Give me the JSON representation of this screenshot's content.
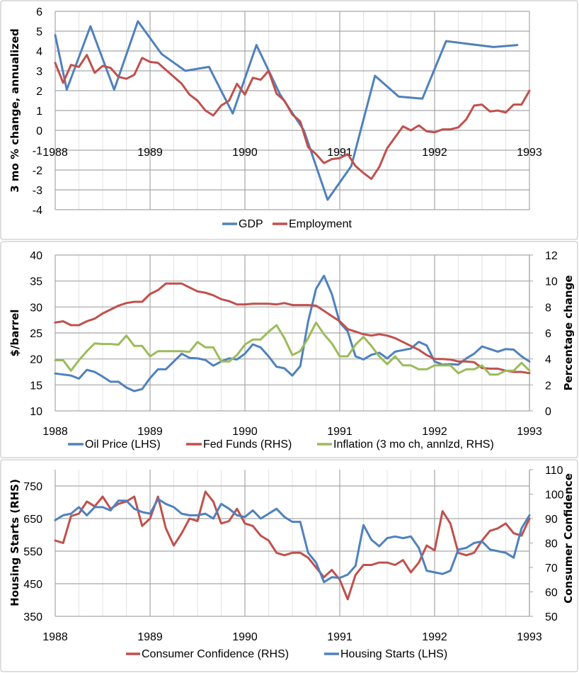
{
  "chart_data": [
    {
      "type": "line",
      "ylabel": "3 mo % change, annualized",
      "ylim": [
        -4,
        6
      ],
      "y_ticks": [
        "6",
        "5",
        "4",
        "3",
        "2",
        "1",
        "0",
        "-1",
        "-2",
        "-3",
        "-4"
      ],
      "xlim": [
        "1988-01",
        "1993-01"
      ],
      "x_ticks": [
        "1988",
        "1989",
        "1990",
        "1991",
        "1992",
        "1993"
      ],
      "grid": true,
      "legend": "bottom",
      "series": [
        {
          "name": "GDP",
          "color": "#4f81bd",
          "x": [
            "1988-01-01",
            "1988-02-15",
            "1988-05-15",
            "1988-08-15",
            "1988-11-15",
            "1989-02-15",
            "1989-05-15",
            "1989-08-15",
            "1989-11-15",
            "1990-02-15",
            "1990-05-15",
            "1990-08-15",
            "1990-11-15",
            "1991-02-15",
            "1991-05-15",
            "1991-08-15",
            "1991-11-15",
            "1992-02-15",
            "1992-05-15",
            "1992-08-15",
            "1992-11-15"
          ],
          "values": [
            4.8,
            2.05,
            5.25,
            2.05,
            5.5,
            3.85,
            3.0,
            3.2,
            0.85,
            4.3,
            1.8,
            0.0,
            -3.5,
            -1.8,
            2.75,
            1.7,
            1.6,
            4.5,
            4.35,
            4.2,
            4.3
          ]
        },
        {
          "name": "Employment",
          "color": "#c0504d",
          "x": [
            "1988-01",
            "1988-02",
            "1988-03",
            "1988-04",
            "1988-05",
            "1988-06",
            "1988-07",
            "1988-08",
            "1988-09",
            "1988-10",
            "1988-11",
            "1988-12",
            "1989-01",
            "1989-02",
            "1989-03",
            "1989-04",
            "1989-05",
            "1989-06",
            "1989-07",
            "1989-08",
            "1989-09",
            "1989-10",
            "1989-11",
            "1989-12",
            "1990-01",
            "1990-02",
            "1990-03",
            "1990-04",
            "1990-05",
            "1990-06",
            "1990-07",
            "1990-08",
            "1990-09",
            "1990-10",
            "1990-11",
            "1990-12",
            "1991-01",
            "1991-02",
            "1991-03",
            "1991-04",
            "1991-05",
            "1991-06",
            "1991-07",
            "1991-08",
            "1991-09",
            "1991-10",
            "1991-11",
            "1991-12",
            "1992-01",
            "1992-02",
            "1992-03",
            "1992-04",
            "1992-05",
            "1992-06",
            "1992-07",
            "1992-08",
            "1992-09",
            "1992-10",
            "1992-11",
            "1992-12",
            "1993-01"
          ],
          "values": [
            3.4,
            2.4,
            3.3,
            3.2,
            3.8,
            2.9,
            3.25,
            3.15,
            2.7,
            2.6,
            2.8,
            3.65,
            3.45,
            3.4,
            3.05,
            2.7,
            2.35,
            1.8,
            1.5,
            1.0,
            0.75,
            1.25,
            1.5,
            2.35,
            1.8,
            2.65,
            2.55,
            3.0,
            1.85,
            1.5,
            0.8,
            0.45,
            -0.85,
            -1.2,
            -1.65,
            -1.45,
            -1.4,
            -1.2,
            -1.8,
            -2.15,
            -2.45,
            -1.85,
            -0.9,
            -0.35,
            0.2,
            0.0,
            0.25,
            -0.05,
            -0.1,
            0.05,
            0.05,
            0.15,
            0.55,
            1.25,
            1.3,
            0.95,
            1.0,
            0.9,
            1.3,
            1.3,
            2.0
          ]
        }
      ]
    },
    {
      "type": "line",
      "ylabel": "$/barrel",
      "ylabel_right": "Percentage change",
      "ylim": [
        10,
        40
      ],
      "ylim_right": [
        0,
        12
      ],
      "y_ticks": [
        "40",
        "35",
        "30",
        "25",
        "20",
        "15",
        "10"
      ],
      "y_ticks_right": [
        "12",
        "10",
        "8",
        "6",
        "4",
        "2",
        "0"
      ],
      "xlim": [
        "1988-01",
        "1993-01"
      ],
      "x_ticks": [
        "1988",
        "1989",
        "1990",
        "1991",
        "1992",
        "1993"
      ],
      "grid": true,
      "legend": "bottom",
      "series": [
        {
          "name": "Oil Price (LHS)",
          "color": "#4f81bd",
          "axis": "left",
          "x": [
            "1988-01",
            "1988-02",
            "1988-03",
            "1988-04",
            "1988-05",
            "1988-06",
            "1988-07",
            "1988-08",
            "1988-09",
            "1988-10",
            "1988-11",
            "1988-12",
            "1989-01",
            "1989-02",
            "1989-03",
            "1989-04",
            "1989-05",
            "1989-06",
            "1989-07",
            "1989-08",
            "1989-09",
            "1989-10",
            "1989-11",
            "1989-12",
            "1990-01",
            "1990-02",
            "1990-03",
            "1990-04",
            "1990-05",
            "1990-06",
            "1990-07",
            "1990-08",
            "1990-09",
            "1990-10",
            "1990-11",
            "1990-12",
            "1991-01",
            "1991-02",
            "1991-03",
            "1991-04",
            "1991-05",
            "1991-06",
            "1991-07",
            "1991-08",
            "1991-09",
            "1991-10",
            "1991-11",
            "1991-12",
            "1992-01",
            "1992-02",
            "1992-03",
            "1992-04",
            "1992-05",
            "1992-06",
            "1992-07",
            "1992-08",
            "1992-09",
            "1992-10",
            "1992-11",
            "1992-12",
            "1993-01"
          ],
          "values": [
            17.2,
            17.0,
            16.8,
            16.2,
            17.9,
            17.5,
            16.6,
            15.6,
            15.6,
            14.5,
            13.8,
            14.2,
            16.3,
            18.0,
            18.0,
            19.5,
            21.0,
            20.2,
            20.1,
            19.8,
            18.7,
            19.5,
            20.1,
            19.9,
            21.0,
            22.8,
            22.2,
            20.5,
            18.5,
            18.2,
            16.8,
            18.6,
            27.2,
            33.5,
            36.0,
            32.5,
            27.0,
            25.3,
            20.5,
            19.9,
            20.8,
            21.2,
            20.1,
            21.4,
            21.7,
            22.0,
            23.3,
            22.6,
            19.5,
            18.9,
            19.0,
            18.9,
            20.1,
            21.0,
            22.4,
            21.9,
            21.4,
            21.9,
            21.8,
            20.5,
            19.5
          ]
        },
        {
          "name": "Fed Funds (RHS)",
          "color": "#c0504d",
          "axis": "right",
          "x": [
            "1988-01",
            "1988-02",
            "1988-03",
            "1988-04",
            "1988-05",
            "1988-06",
            "1988-07",
            "1988-08",
            "1988-09",
            "1988-10",
            "1988-11",
            "1988-12",
            "1989-01",
            "1989-02",
            "1989-03",
            "1989-04",
            "1989-05",
            "1989-06",
            "1989-07",
            "1989-08",
            "1989-09",
            "1989-10",
            "1989-11",
            "1989-12",
            "1990-01",
            "1990-02",
            "1990-03",
            "1990-04",
            "1990-05",
            "1990-06",
            "1990-07",
            "1990-08",
            "1990-09",
            "1990-10",
            "1990-11",
            "1990-12",
            "1991-01",
            "1991-02",
            "1991-03",
            "1991-04",
            "1991-05",
            "1991-06",
            "1991-07",
            "1991-08",
            "1991-09",
            "1991-10",
            "1991-11",
            "1991-12",
            "1992-01",
            "1992-02",
            "1992-03",
            "1992-04",
            "1992-05",
            "1992-06",
            "1992-07",
            "1992-08",
            "1992-09",
            "1992-10",
            "1992-11",
            "1992-12",
            "1993-01"
          ],
          "values": [
            6.8,
            6.9,
            6.6,
            6.6,
            6.9,
            7.1,
            7.5,
            7.8,
            8.1,
            8.3,
            8.4,
            8.4,
            9.0,
            9.3,
            9.8,
            9.8,
            9.8,
            9.5,
            9.2,
            9.1,
            8.9,
            8.6,
            8.45,
            8.2,
            8.2,
            8.25,
            8.25,
            8.25,
            8.2,
            8.3,
            8.15,
            8.15,
            8.15,
            8.1,
            7.7,
            7.3,
            6.9,
            6.3,
            6.1,
            5.9,
            5.8,
            5.9,
            5.8,
            5.6,
            5.3,
            5.0,
            4.7,
            4.3,
            4.0,
            4.0,
            3.95,
            3.8,
            3.8,
            3.75,
            3.3,
            3.25,
            3.25,
            3.1,
            3.0,
            3.0,
            2.9
          ]
        },
        {
          "name": "Inflation (3 mo ch, annlzd, RHS)",
          "color": "#9bbb59",
          "axis": "right",
          "x": [
            "1988-01",
            "1988-02",
            "1988-03",
            "1988-04",
            "1988-05",
            "1988-06",
            "1988-07",
            "1988-08",
            "1988-09",
            "1988-10",
            "1988-11",
            "1988-12",
            "1989-01",
            "1989-02",
            "1989-03",
            "1989-04",
            "1989-05",
            "1989-06",
            "1989-07",
            "1989-08",
            "1989-09",
            "1989-10",
            "1989-11",
            "1989-12",
            "1990-01",
            "1990-02",
            "1990-03",
            "1990-04",
            "1990-05",
            "1990-06",
            "1990-07",
            "1990-08",
            "1990-09",
            "1990-10",
            "1990-11",
            "1990-12",
            "1991-01",
            "1991-02",
            "1991-03",
            "1991-04",
            "1991-05",
            "1991-06",
            "1991-07",
            "1991-08",
            "1991-09",
            "1991-10",
            "1991-11",
            "1991-12",
            "1992-01",
            "1992-02",
            "1992-03",
            "1992-04",
            "1992-05",
            "1992-06",
            "1992-07",
            "1992-08",
            "1992-09",
            "1992-10",
            "1992-11",
            "1992-12",
            "1993-01"
          ],
          "values": [
            3.9,
            3.9,
            3.1,
            3.9,
            4.6,
            5.2,
            5.15,
            5.15,
            5.1,
            5.8,
            5.0,
            5.0,
            4.2,
            4.6,
            4.6,
            4.6,
            4.6,
            4.55,
            5.3,
            4.9,
            4.9,
            3.8,
            3.8,
            4.3,
            5.1,
            5.5,
            5.5,
            6.1,
            6.6,
            5.6,
            4.3,
            4.6,
            5.6,
            6.8,
            5.9,
            5.2,
            4.2,
            4.2,
            5.1,
            5.7,
            5.0,
            4.2,
            3.6,
            4.2,
            3.5,
            3.5,
            3.2,
            3.2,
            3.5,
            3.5,
            3.5,
            2.9,
            3.2,
            3.2,
            3.5,
            2.8,
            2.8,
            3.1,
            3.1,
            3.7,
            3.1
          ]
        }
      ]
    },
    {
      "type": "line",
      "ylabel": "Housing Starts (RHS)",
      "ylabel_right": "Consumer Confidence",
      "ylim": [
        350,
        800
      ],
      "ylim_right": [
        50,
        110
      ],
      "y_ticks": [
        "750",
        "650",
        "550",
        "450",
        "350"
      ],
      "y_ticks_right": [
        "110",
        "100",
        "90",
        "80",
        "70",
        "60",
        "50"
      ],
      "xlim": [
        "1988-01",
        "1993-01"
      ],
      "x_ticks": [
        "1988",
        "1989",
        "1990",
        "1991",
        "1992",
        "1993"
      ],
      "grid": true,
      "legend": "bottom",
      "series": [
        {
          "name": "Consumer Confidence (RHS)",
          "color": "#c0504d",
          "axis": "right",
          "x": [
            "1988-01",
            "1988-02",
            "1988-03",
            "1988-04",
            "1988-05",
            "1988-06",
            "1988-07",
            "1988-08",
            "1988-09",
            "1988-10",
            "1988-11",
            "1988-12",
            "1989-01",
            "1989-02",
            "1989-03",
            "1989-04",
            "1989-05",
            "1989-06",
            "1989-07",
            "1989-08",
            "1989-09",
            "1989-10",
            "1989-11",
            "1989-12",
            "1990-01",
            "1990-02",
            "1990-03",
            "1990-04",
            "1990-05",
            "1990-06",
            "1990-07",
            "1990-08",
            "1990-09",
            "1990-10",
            "1990-11",
            "1990-12",
            "1991-01",
            "1991-02",
            "1991-03",
            "1991-04",
            "1991-05",
            "1991-06",
            "1991-07",
            "1991-08",
            "1991-09",
            "1991-10",
            "1991-11",
            "1991-12",
            "1992-01",
            "1992-02",
            "1992-03",
            "1992-04",
            "1992-05",
            "1992-06",
            "1992-07",
            "1992-08",
            "1992-09",
            "1992-10",
            "1992-11",
            "1992-12",
            "1993-01"
          ],
          "values": [
            81,
            80,
            91,
            92,
            97,
            95,
            99,
            94,
            96,
            97,
            99,
            87,
            90,
            99,
            86,
            79,
            84,
            90,
            89,
            101,
            97,
            88,
            89,
            94,
            88,
            87,
            83,
            81,
            76,
            75,
            76,
            76,
            74,
            70,
            66,
            69,
            65,
            57,
            67,
            71,
            71,
            72,
            72,
            71,
            73,
            68,
            72,
            79,
            77,
            93,
            88,
            76,
            75,
            76,
            81,
            85,
            86,
            88,
            84,
            83,
            90
          ]
        },
        {
          "name": "Housing Starts (LHS)",
          "color": "#4f81bd",
          "axis": "left",
          "x": [
            "1988-01",
            "1988-02",
            "1988-03",
            "1988-04",
            "1988-05",
            "1988-06",
            "1988-07",
            "1988-08",
            "1988-09",
            "1988-10",
            "1988-11",
            "1988-12",
            "1989-01",
            "1989-02",
            "1989-03",
            "1989-04",
            "1989-05",
            "1989-06",
            "1989-07",
            "1989-08",
            "1989-09",
            "1989-10",
            "1989-11",
            "1989-12",
            "1990-01",
            "1990-02",
            "1990-03",
            "1990-04",
            "1990-05",
            "1990-06",
            "1990-07",
            "1990-08",
            "1990-09",
            "1990-10",
            "1990-11",
            "1990-12",
            "1991-01",
            "1991-02",
            "1991-03",
            "1991-04",
            "1991-05",
            "1991-06",
            "1991-07",
            "1991-08",
            "1991-09",
            "1991-10",
            "1991-11",
            "1991-12",
            "1992-01",
            "1992-02",
            "1992-03",
            "1992-04",
            "1992-05",
            "1992-06",
            "1992-07",
            "1992-08",
            "1992-09",
            "1992-10",
            "1992-11",
            "1992-12",
            "1993-01"
          ],
          "values": [
            645,
            660,
            665,
            685,
            660,
            685,
            685,
            675,
            705,
            705,
            680,
            670,
            665,
            710,
            695,
            685,
            665,
            660,
            660,
            665,
            650,
            695,
            680,
            660,
            655,
            675,
            650,
            665,
            680,
            655,
            640,
            640,
            545,
            515,
            455,
            470,
            468,
            478,
            505,
            630,
            585,
            565,
            590,
            595,
            590,
            595,
            560,
            490,
            485,
            480,
            490,
            555,
            560,
            575,
            580,
            555,
            550,
            545,
            530,
            620,
            660
          ]
        }
      ]
    }
  ]
}
